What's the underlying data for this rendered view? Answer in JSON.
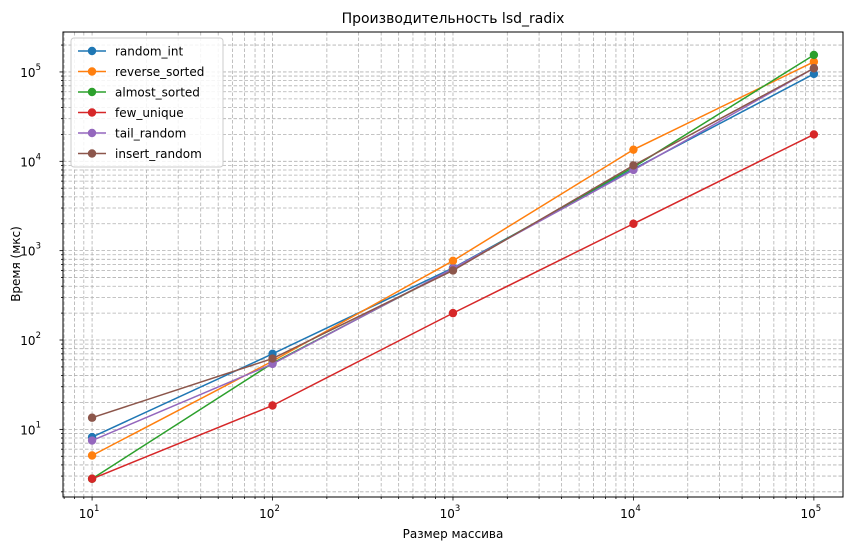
{
  "chart_data": {
    "type": "line",
    "title": "Производительность lsd_radix",
    "xlabel": "Размер массива",
    "ylabel": "Время (мкс)",
    "xscale": "log",
    "yscale": "log",
    "xlim": [
      6.9,
      145000
    ],
    "ylim": [
      1.75,
      280000
    ],
    "grid": true,
    "legend_position": "top-left",
    "x": [
      10,
      100,
      1000,
      10000,
      100000
    ],
    "x_ticks": [
      {
        "value": 10,
        "base": "10",
        "exp": "1"
      },
      {
        "value": 100,
        "base": "10",
        "exp": "2"
      },
      {
        "value": 1000,
        "base": "10",
        "exp": "3"
      },
      {
        "value": 10000,
        "base": "10",
        "exp": "4"
      },
      {
        "value": 100000,
        "base": "10",
        "exp": "5"
      }
    ],
    "y_ticks": [
      {
        "value": 10,
        "base": "10",
        "exp": "1"
      },
      {
        "value": 100,
        "base": "10",
        "exp": "2"
      },
      {
        "value": 1000,
        "base": "10",
        "exp": "3"
      },
      {
        "value": 10000,
        "base": "10",
        "exp": "4"
      },
      {
        "value": 100000,
        "base": "10",
        "exp": "5"
      }
    ],
    "series": [
      {
        "name": "random_int",
        "color": "#1f77b4",
        "values": [
          8.2,
          70,
          640,
          8200,
          95000
        ]
      },
      {
        "name": "reverse_sorted",
        "color": "#ff7f0e",
        "values": [
          5.1,
          58,
          770,
          13500,
          130000
        ]
      },
      {
        "name": "almost_sorted",
        "color": "#2ca02c",
        "values": [
          2.8,
          55,
          620,
          8600,
          155000
        ]
      },
      {
        "name": "few_unique",
        "color": "#d62728",
        "values": [
          2.8,
          18.5,
          200,
          2000,
          20000
        ]
      },
      {
        "name": "tail_random",
        "color": "#9467bd",
        "values": [
          7.5,
          54,
          630,
          8000,
          110000
        ]
      },
      {
        "name": "insert_random",
        "color": "#8c564b",
        "values": [
          13.5,
          62,
          600,
          9000,
          110000
        ]
      }
    ]
  }
}
